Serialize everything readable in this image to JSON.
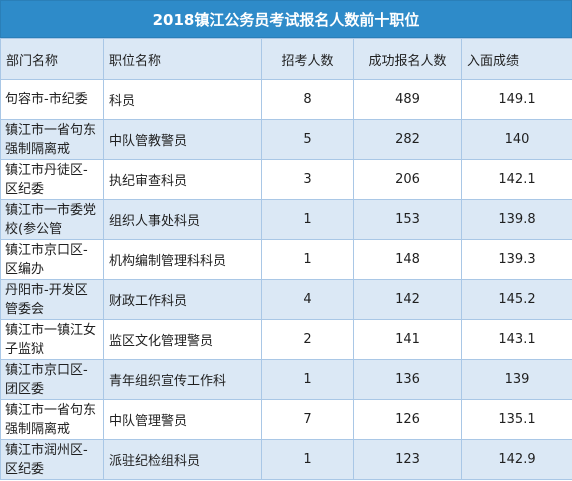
{
  "title": "2018镇江公务员考试报名人数前十职位",
  "headers": {
    "dept": "部门名称",
    "position": "职位名称",
    "quota": "招考人数",
    "applicants": "成功报名人数",
    "cutoff": "入面成绩"
  },
  "rows": [
    {
      "dept": "句容市-市纪委",
      "position": "科员",
      "quota": "8",
      "applicants": "489",
      "cutoff": "149.1"
    },
    {
      "dept": "镇江市一省句东强制隔离戒",
      "position": "中队管教警员",
      "quota": "5",
      "applicants": "282",
      "cutoff": "140"
    },
    {
      "dept": "镇江市丹徒区-区纪委",
      "position": "执纪审查科员",
      "quota": "3",
      "applicants": "206",
      "cutoff": "142.1"
    },
    {
      "dept": "镇江市一市委党校(参公管",
      "position": "组织人事处科员",
      "quota": "1",
      "applicants": "153",
      "cutoff": "139.8"
    },
    {
      "dept": "镇江市京口区-区编办",
      "position": "机构编制管理科科员",
      "quota": "1",
      "applicants": "148",
      "cutoff": "139.3"
    },
    {
      "dept": "丹阳市-开发区管委会",
      "position": "财政工作科员",
      "quota": "4",
      "applicants": "142",
      "cutoff": "145.2"
    },
    {
      "dept": "镇江市一镇江女子监狱",
      "position": "监区文化管理警员",
      "quota": "2",
      "applicants": "141",
      "cutoff": "143.1"
    },
    {
      "dept": "镇江市京口区-团区委",
      "position": "青年组织宣传工作科",
      "quota": "1",
      "applicants": "136",
      "cutoff": "139"
    },
    {
      "dept": "镇江市一省句东强制隔离戒",
      "position": "中队管理警员",
      "quota": "7",
      "applicants": "126",
      "cutoff": "135.1"
    },
    {
      "dept": "镇江市润州区-区纪委",
      "position": "派驻纪检组科员",
      "quota": "1",
      "applicants": "123",
      "cutoff": "142.9"
    }
  ]
}
